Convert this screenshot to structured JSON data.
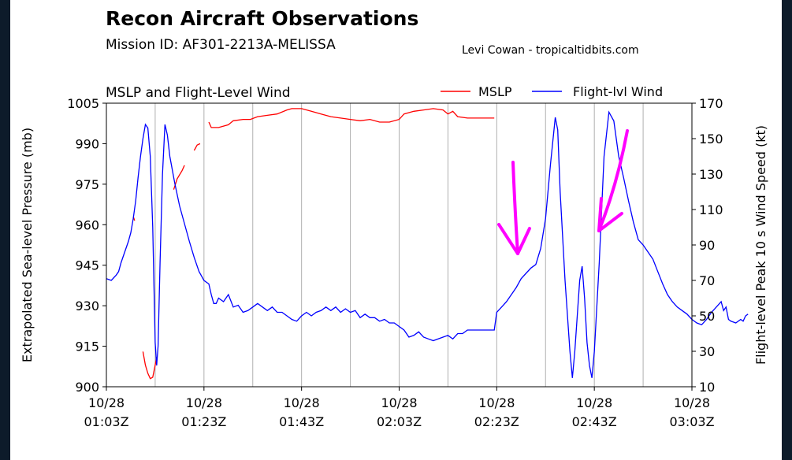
{
  "header": {
    "title": "Recon Aircraft Observations",
    "mission": "Mission ID: AF301-2213A-MELISSA",
    "credit": "Levi Cowan - tropicaltidbits.com"
  },
  "chart_data": {
    "type": "line",
    "title": "MSLP and Flight-Level Wind",
    "ylabel": "Extrapolated Sea-level Pressure (mb)",
    "y2label": "Flight-level Peak 10 s Wind Speed (kt)",
    "ylim": [
      900,
      1005
    ],
    "y2lim": [
      10,
      170
    ],
    "yticks": [
      "1005",
      "990",
      "975",
      "960",
      "945",
      "930",
      "915",
      "900"
    ],
    "y2ticks": [
      "170",
      "150",
      "130",
      "110",
      "90",
      "70",
      "50",
      "30",
      "10"
    ],
    "xlim_minutes": [
      0,
      120
    ],
    "xticks": [
      {
        "date": "10/28",
        "time": "01:03Z"
      },
      {
        "date": "10/28",
        "time": "01:23Z"
      },
      {
        "date": "10/28",
        "time": "01:43Z"
      },
      {
        "date": "10/28",
        "time": "02:03Z"
      },
      {
        "date": "10/28",
        "time": "02:23Z"
      },
      {
        "date": "10/28",
        "time": "02:43Z"
      },
      {
        "date": "10/28",
        "time": "03:03Z"
      }
    ],
    "grid": "vertical",
    "legend_position": "top-right",
    "series": [
      {
        "name": "MSLP",
        "color": "#ff0000",
        "axis": "left",
        "segments": [
          [
            [
              5.5,
              963
            ],
            [
              5.8,
              961.5
            ]
          ],
          [
            [
              7.5,
              913
            ],
            [
              8.0,
              908
            ],
            [
              8.5,
              905
            ],
            [
              9.0,
              903
            ],
            [
              9.5,
              903.5
            ],
            [
              10.0,
              908
            ],
            [
              10.3,
              911
            ]
          ],
          [
            [
              13.8,
              973
            ],
            [
              14.5,
              977
            ],
            [
              15.5,
              980
            ],
            [
              16.0,
              982
            ]
          ],
          [
            [
              18.0,
              987.5
            ],
            [
              18.6,
              989.5
            ],
            [
              19.2,
              990
            ]
          ],
          [
            [
              21.0,
              998
            ],
            [
              21.5,
              996
            ],
            [
              23,
              996
            ],
            [
              25,
              997
            ],
            [
              26,
              998.5
            ],
            [
              28,
              999
            ],
            [
              29.5,
              999
            ],
            [
              31,
              1000
            ],
            [
              33,
              1000.5
            ],
            [
              35,
              1001
            ],
            [
              37,
              1002.5
            ],
            [
              38,
              1003
            ],
            [
              40,
              1003
            ],
            [
              42,
              1002
            ],
            [
              44,
              1001
            ],
            [
              46,
              1000
            ],
            [
              48,
              999.5
            ],
            [
              50,
              999
            ],
            [
              52,
              998.5
            ],
            [
              54,
              999
            ],
            [
              56,
              998
            ],
            [
              58,
              998
            ],
            [
              60,
              999
            ],
            [
              61,
              1001
            ],
            [
              63,
              1002
            ],
            [
              65,
              1002.5
            ],
            [
              67,
              1003
            ],
            [
              69,
              1002.5
            ],
            [
              70,
              1001
            ],
            [
              71,
              1002
            ],
            [
              72,
              1000
            ],
            [
              74,
              999.5
            ],
            [
              76,
              999.5
            ],
            [
              78,
              999.5
            ],
            [
              79.5,
              999.5
            ]
          ]
        ]
      },
      {
        "name": "Flight-lvl Wind",
        "color": "#0000ff",
        "axis": "right",
        "values": [
          [
            0,
            71
          ],
          [
            1,
            70
          ],
          [
            2,
            73
          ],
          [
            2.5,
            75
          ],
          [
            3,
            80
          ],
          [
            4,
            88
          ],
          [
            4.5,
            92
          ],
          [
            5,
            97
          ],
          [
            5.5,
            105
          ],
          [
            6,
            115
          ],
          [
            6.5,
            128
          ],
          [
            7,
            140
          ],
          [
            7.5,
            150
          ],
          [
            8,
            158
          ],
          [
            8.5,
            156
          ],
          [
            9,
            140
          ],
          [
            9.5,
            100
          ],
          [
            10,
            35
          ],
          [
            10.3,
            22
          ],
          [
            10.6,
            33
          ],
          [
            11,
            80
          ],
          [
            11.5,
            130
          ],
          [
            12,
            158
          ],
          [
            12.5,
            152
          ],
          [
            13,
            140
          ],
          [
            14,
            125
          ],
          [
            15,
            112
          ],
          [
            16,
            102
          ],
          [
            17,
            92
          ],
          [
            18,
            83
          ],
          [
            19,
            75
          ],
          [
            20,
            70
          ],
          [
            21,
            68
          ],
          [
            21.5,
            62
          ],
          [
            22,
            57
          ],
          [
            22.5,
            57
          ],
          [
            23,
            60
          ],
          [
            24,
            58
          ],
          [
            25,
            62
          ],
          [
            26,
            55
          ],
          [
            27,
            56
          ],
          [
            28,
            52
          ],
          [
            29,
            53
          ],
          [
            30,
            55
          ],
          [
            31,
            57
          ],
          [
            32,
            55
          ],
          [
            33,
            53
          ],
          [
            34,
            55
          ],
          [
            35,
            52
          ],
          [
            36,
            52
          ],
          [
            37,
            50
          ],
          [
            38,
            48
          ],
          [
            39,
            47
          ],
          [
            40,
            50
          ],
          [
            41,
            52
          ],
          [
            42,
            50
          ],
          [
            43,
            52
          ],
          [
            44,
            53
          ],
          [
            45,
            55
          ],
          [
            46,
            53
          ],
          [
            47,
            55
          ],
          [
            48,
            52
          ],
          [
            49,
            54
          ],
          [
            50,
            52
          ],
          [
            51,
            53
          ],
          [
            52,
            49
          ],
          [
            53,
            51
          ],
          [
            54,
            49
          ],
          [
            55,
            49
          ],
          [
            56,
            47
          ],
          [
            57,
            48
          ],
          [
            58,
            46
          ],
          [
            59,
            46
          ],
          [
            60,
            44
          ],
          [
            61,
            42
          ],
          [
            62,
            38
          ],
          [
            63,
            39
          ],
          [
            64,
            41
          ],
          [
            65,
            38
          ],
          [
            66,
            37
          ],
          [
            67,
            36
          ],
          [
            68,
            37
          ],
          [
            69,
            38
          ],
          [
            70,
            39
          ],
          [
            71,
            37
          ],
          [
            72,
            40
          ],
          [
            73,
            40
          ],
          [
            74,
            42
          ],
          [
            75,
            42
          ],
          [
            76,
            42
          ],
          [
            77,
            42
          ],
          [
            78,
            42
          ],
          [
            79,
            42
          ],
          [
            79.5,
            42
          ],
          [
            80,
            52
          ],
          [
            81,
            55
          ],
          [
            82,
            58
          ],
          [
            83,
            62
          ],
          [
            84,
            66
          ],
          [
            85,
            71
          ],
          [
            86,
            74
          ],
          [
            87,
            77
          ],
          [
            88,
            79
          ],
          [
            89,
            88
          ],
          [
            90,
            105
          ],
          [
            91,
            135
          ],
          [
            92,
            162
          ],
          [
            92.5,
            155
          ],
          [
            93,
            120
          ],
          [
            94,
            70
          ],
          [
            95,
            30
          ],
          [
            95.5,
            15
          ],
          [
            96,
            30
          ],
          [
            97,
            70
          ],
          [
            97.5,
            78
          ],
          [
            98,
            60
          ],
          [
            98.5,
            35
          ],
          [
            99,
            22
          ],
          [
            99.5,
            15
          ],
          [
            100,
            30
          ],
          [
            101,
            80
          ],
          [
            102,
            140
          ],
          [
            103,
            165
          ],
          [
            104,
            160
          ],
          [
            105,
            140
          ],
          [
            106,
            128
          ],
          [
            107,
            115
          ],
          [
            108,
            103
          ],
          [
            109,
            93
          ],
          [
            110,
            90
          ],
          [
            111,
            86
          ],
          [
            112,
            82
          ],
          [
            113,
            75
          ],
          [
            114,
            68
          ],
          [
            115,
            62
          ],
          [
            116,
            58
          ],
          [
            117,
            55
          ],
          [
            118,
            53
          ],
          [
            119,
            51
          ],
          [
            120,
            48
          ],
          [
            121,
            46
          ],
          [
            122,
            45
          ],
          [
            123,
            48
          ],
          [
            124,
            52
          ],
          [
            125,
            55
          ],
          [
            126,
            58
          ],
          [
            126.5,
            53
          ],
          [
            127,
            55
          ],
          [
            127.5,
            48
          ],
          [
            128,
            47
          ],
          [
            129,
            46
          ],
          [
            130,
            48
          ],
          [
            130.5,
            47
          ],
          [
            131,
            50
          ],
          [
            131.5,
            51
          ]
        ]
      }
    ],
    "annotations": [
      {
        "type": "hand-drawn-arrow",
        "color": "#ff00ff",
        "target": "inflection in wind ramp before first peak"
      },
      {
        "type": "hand-drawn-arrow",
        "color": "#ff00ff",
        "target": "shoulder in wind decline after second peak"
      }
    ]
  }
}
